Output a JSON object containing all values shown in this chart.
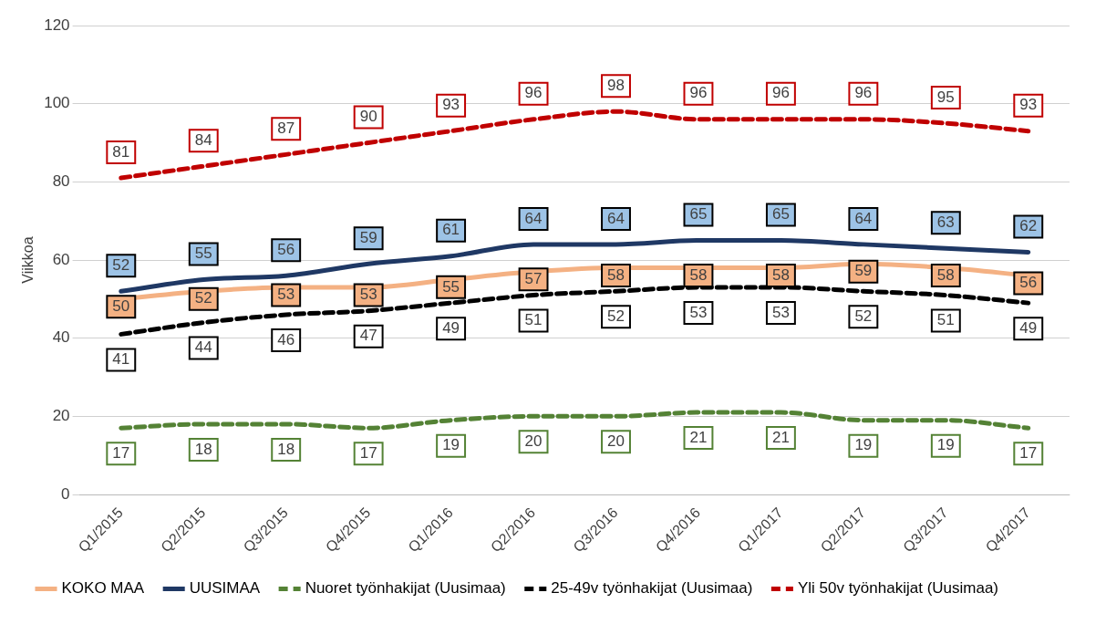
{
  "chart_data": {
    "type": "line",
    "ylabel": "Viikkoa",
    "categories": [
      "Q1/2015",
      "Q2/2015",
      "Q3/2015",
      "Q4/2015",
      "Q1/2016",
      "Q2/2016",
      "Q3/2016",
      "Q4/2016",
      "Q1/2017",
      "Q2/2017",
      "Q3/2017",
      "Q4/2017"
    ],
    "series": [
      {
        "name": "KOKO MAA",
        "color": "#f4b183",
        "line_style": "solid",
        "values": [
          50,
          52,
          53,
          53,
          55,
          57,
          58,
          58,
          58,
          59,
          58,
          56
        ]
      },
      {
        "name": "UUSIMAA",
        "color": "#1f3864",
        "line_style": "solid",
        "values": [
          52,
          55,
          56,
          59,
          61,
          64,
          64,
          65,
          65,
          64,
          63,
          62
        ]
      },
      {
        "name": "Nuoret työnhakijat (Uusimaa)",
        "color": "#548235",
        "line_style": "dashed",
        "values": [
          17,
          18,
          18,
          17,
          19,
          20,
          20,
          21,
          21,
          19,
          19,
          17
        ]
      },
      {
        "name": "25-49v työnhakijat (Uusimaa)",
        "color": "#000000",
        "line_style": "dashed",
        "values": [
          41,
          44,
          46,
          47,
          49,
          51,
          52,
          53,
          53,
          52,
          51,
          49
        ]
      },
      {
        "name": "Yli 50v työnhakijat (Uusimaa)",
        "color": "#c00000",
        "line_style": "dashed",
        "values": [
          81,
          84,
          87,
          90,
          93,
          96,
          98,
          96,
          96,
          96,
          95,
          93
        ]
      }
    ],
    "ylim": [
      0,
      120
    ],
    "yticks": [
      0,
      20,
      40,
      60,
      80,
      100,
      120
    ],
    "grid": "y",
    "legend": "bottom",
    "data_labels": true
  }
}
